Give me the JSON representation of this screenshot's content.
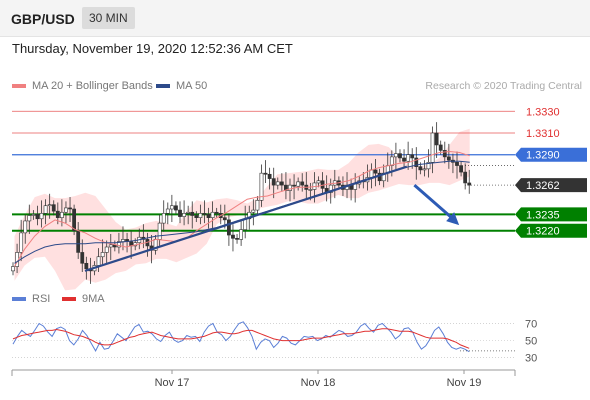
{
  "header": {
    "symbol": "GBP/USD",
    "timeframe": "30 MIN"
  },
  "datetime": "Thursday, November 19, 2020 12:52:36 AM CET",
  "legend": [
    {
      "label": "MA 20 + Bollinger Bands",
      "color": "#f08080"
    },
    {
      "label": "MA 50",
      "color": "#2d4a8a"
    }
  ],
  "credit": "Research © 2020 Trading Central",
  "colors": {
    "red_level": "#e03030",
    "blue_level": "#3a6fd8",
    "green_level": "#008000",
    "current_tag": "#333333",
    "trendline": "#2d4a8a",
    "bollinger": "#ffd6d6",
    "rsi": "#5b7fd6",
    "rsi_ma": "#e03030"
  },
  "chart_data": [
    {
      "type": "candlestick",
      "title": "GBP/USD 30 MIN",
      "ylim": [
        1.317,
        1.3345
      ],
      "price_levels": [
        {
          "value": 1.333,
          "label": "1.3330",
          "style": "red-line"
        },
        {
          "value": 1.331,
          "label": "1.3310",
          "style": "red-line"
        },
        {
          "value": 1.329,
          "label": "1.3290",
          "style": "blue-tag"
        },
        {
          "value": 1.3262,
          "label": "1.3262",
          "style": "current-price"
        },
        {
          "value": 1.3235,
          "label": "1.3235",
          "style": "green-tag"
        },
        {
          "value": 1.322,
          "label": "1.3220",
          "style": "green-tag"
        }
      ],
      "x_ticks": [
        "Nov 17",
        "Nov 18",
        "Nov 19"
      ],
      "close_series": [
        1.3187,
        1.32,
        1.3218,
        1.3229,
        1.3234,
        1.3235,
        1.3231,
        1.3236,
        1.3243,
        1.3244,
        1.3238,
        1.3232,
        1.3237,
        1.3241,
        1.324,
        1.322,
        1.32,
        1.319,
        1.3185,
        1.3183,
        1.3188,
        1.3196,
        1.32,
        1.3205,
        1.3207,
        1.3205,
        1.321,
        1.3212,
        1.321,
        1.3206,
        1.3209,
        1.3214,
        1.3212,
        1.3206,
        1.3202,
        1.3212,
        1.3227,
        1.3236,
        1.324,
        1.3243,
        1.3239,
        1.3233,
        1.3236,
        1.3237,
        1.3234,
        1.3232,
        1.3236,
        1.3235,
        1.3232,
        1.3237,
        1.3236,
        1.3232,
        1.323,
        1.3216,
        1.3213,
        1.3212,
        1.3221,
        1.3231,
        1.3237,
        1.3239,
        1.3248,
        1.3273,
        1.3272,
        1.3268,
        1.3262,
        1.3265,
        1.3262,
        1.3257,
        1.3262,
        1.3261,
        1.3265,
        1.3262,
        1.3258,
        1.3258,
        1.3264,
        1.3266,
        1.3259,
        1.3255,
        1.3262,
        1.3266,
        1.3262,
        1.3258,
        1.3262,
        1.3258,
        1.3263,
        1.3266,
        1.3265,
        1.3269,
        1.3276,
        1.3273,
        1.3266,
        1.3273,
        1.328,
        1.3288,
        1.3291,
        1.3287,
        1.3284,
        1.329,
        1.3287,
        1.3279,
        1.3276,
        1.3277,
        1.3283,
        1.331,
        1.3299,
        1.3294,
        1.3288,
        1.3285,
        1.3283,
        1.328,
        1.3274,
        1.3264,
        1.3262
      ],
      "bollinger_upper": [
        1.3215,
        1.3234,
        1.3251,
        1.3254,
        1.325,
        1.325,
        1.3252,
        1.3255,
        1.3252,
        1.324,
        1.3228,
        1.3221,
        1.3223,
        1.3227,
        1.3229,
        1.3227,
        1.3224,
        1.3238,
        1.3248,
        1.3246,
        1.3249,
        1.325,
        1.3248,
        1.3245,
        1.325,
        1.3261,
        1.3272,
        1.3273,
        1.3274,
        1.3275,
        1.3277,
        1.3276,
        1.3276,
        1.3282,
        1.3292,
        1.3299,
        1.33,
        1.3297,
        1.3287,
        1.328,
        1.3279,
        1.3281,
        1.3287,
        1.3299,
        1.3311,
        1.3314
      ],
      "bollinger_lower": [
        1.3174,
        1.3188,
        1.3195,
        1.3196,
        1.3183,
        1.3165,
        1.3166,
        1.3175,
        1.3172,
        1.3175,
        1.3181,
        1.3183,
        1.3189,
        1.319,
        1.3194,
        1.3194,
        1.3191,
        1.3195,
        1.3199,
        1.3208,
        1.3226,
        1.3232,
        1.3234,
        1.3236,
        1.324,
        1.3242,
        1.3244,
        1.3247,
        1.3247,
        1.3245,
        1.3245,
        1.3249,
        1.3253,
        1.325,
        1.325,
        1.3255,
        1.3257,
        1.326,
        1.3263,
        1.3262,
        1.3262,
        1.3264,
        1.3264,
        1.3262,
        1.3266,
        1.327
      ],
      "ma20": [
        1.3187,
        1.3203,
        1.3215,
        1.3224,
        1.323,
        1.3227,
        1.3221,
        1.3218,
        1.3213,
        1.3209,
        1.3207,
        1.3205,
        1.3207,
        1.3209,
        1.3212,
        1.3211,
        1.321,
        1.3213,
        1.322,
        1.3226,
        1.3232,
        1.3237,
        1.3243,
        1.3249,
        1.3251,
        1.3252,
        1.3255,
        1.3258,
        1.326,
        1.326,
        1.3261,
        1.3263,
        1.3264,
        1.3266,
        1.327,
        1.3275,
        1.3278,
        1.328,
        1.3282,
        1.3283,
        1.3286,
        1.3289,
        1.3292,
        1.3293,
        1.3292,
        1.3289
      ],
      "ma50": [
        1.319,
        1.3196,
        1.3201,
        1.3205,
        1.3207,
        1.3208,
        1.3208,
        1.3208,
        1.3209,
        1.3209,
        1.3209,
        1.321,
        1.3211,
        1.3213,
        1.3215,
        1.3216,
        1.3217,
        1.3218,
        1.3219,
        1.3221,
        1.3223,
        1.3226,
        1.3229,
        1.3232,
        1.3235,
        1.3238,
        1.3241,
        1.3244,
        1.3247,
        1.325,
        1.3253,
        1.3256,
        1.3259,
        1.3262,
        1.3265,
        1.3268,
        1.3271,
        1.3274,
        1.3277,
        1.3279,
        1.3281,
        1.3282,
        1.3283,
        1.3284,
        1.3284,
        1.3283
      ],
      "trendline": [
        [
          0.145,
          1.3183
        ],
        [
          0.785,
          1.3279
        ]
      ],
      "forecast_arrow": [
        [
          0.8,
          1.3262
        ],
        [
          0.885,
          1.3227
        ]
      ]
    },
    {
      "type": "line",
      "title": "RSI",
      "ylim": [
        25,
        80
      ],
      "y_ticks": [
        70,
        50,
        30
      ],
      "series": [
        {
          "name": "RSI",
          "values": [
            46,
            55,
            62,
            58,
            55,
            62,
            70,
            67,
            60,
            55,
            64,
            66,
            63,
            50,
            45,
            52,
            62,
            56,
            47,
            38,
            48,
            40,
            41,
            49,
            58,
            54,
            50,
            58,
            66,
            69,
            60,
            61,
            58,
            52,
            49,
            56,
            60,
            51,
            48,
            50,
            56,
            54,
            55,
            49,
            60,
            67,
            70,
            60,
            57,
            50,
            55,
            63,
            70,
            72,
            65,
            55,
            40,
            48,
            52,
            50,
            42,
            47,
            55,
            53,
            47,
            45,
            50,
            55,
            54,
            55,
            50,
            52,
            56,
            54,
            58,
            62,
            60,
            55,
            56,
            60,
            67,
            70,
            64,
            60,
            68,
            70,
            65,
            60,
            52,
            56,
            64,
            65,
            60,
            48,
            40,
            44,
            52,
            62,
            66,
            58,
            48,
            42,
            40,
            42,
            40,
            37
          ]
        },
        {
          "name": "9MA",
          "values": [
            52,
            54,
            56,
            57,
            58,
            59,
            60,
            61,
            62,
            62,
            63,
            62,
            61,
            59,
            57,
            56,
            55,
            53,
            51,
            48,
            46,
            45,
            45,
            46,
            48,
            50,
            52,
            54,
            55,
            57,
            58,
            59,
            60,
            58,
            56,
            55,
            54,
            53,
            52,
            52,
            52,
            52,
            53,
            54,
            55,
            57,
            59,
            60,
            60,
            59,
            58,
            58,
            59,
            61,
            62,
            62,
            60,
            58,
            56,
            54,
            52,
            51,
            50,
            50,
            50,
            50,
            50,
            51,
            52,
            53,
            53,
            53,
            54,
            55,
            56,
            57,
            58,
            58,
            58,
            59,
            60,
            61,
            61,
            62,
            63,
            64,
            64,
            63,
            62,
            61,
            61,
            61,
            60,
            58,
            56,
            54,
            53,
            53,
            53,
            53,
            52,
            50,
            48,
            45,
            43,
            41
          ]
        }
      ]
    }
  ]
}
